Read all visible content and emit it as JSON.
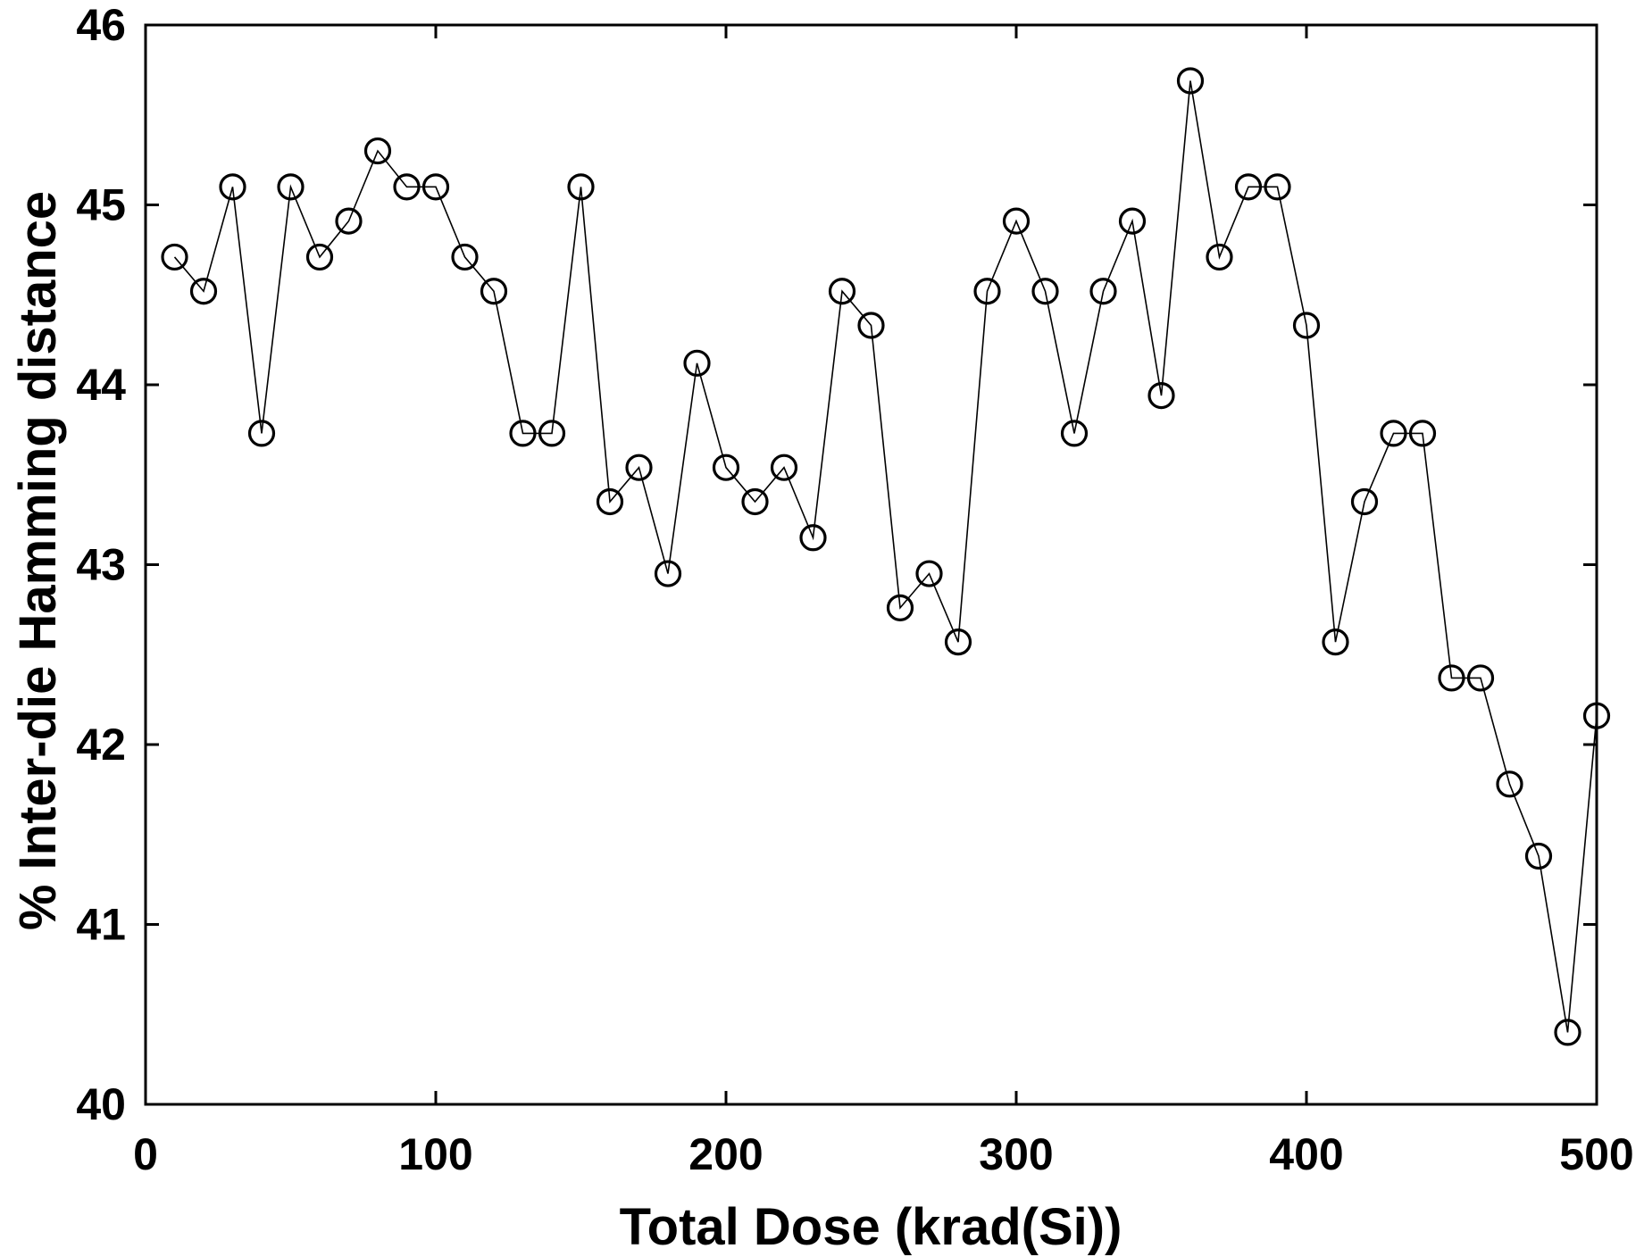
{
  "page": {
    "background": "#ffffff",
    "foreground": "#000000"
  },
  "chart_data": {
    "type": "line",
    "title": "",
    "xlabel": "Total Dose (krad(Si))",
    "ylabel": "% Inter-die Hamming distance",
    "xlim": [
      0,
      500
    ],
    "ylim": [
      40,
      46
    ],
    "xticks": [
      0,
      100,
      200,
      300,
      400,
      500
    ],
    "yticks": [
      40,
      41,
      42,
      43,
      44,
      45,
      46
    ],
    "grid": false,
    "legend": false,
    "boxed_axes": true,
    "tick_direction": "in",
    "series": [
      {
        "name": "inter-die-hamming-distance",
        "marker": "open-circle",
        "line_color": "#000000",
        "marker_color": "#000000",
        "x": [
          10,
          20,
          30,
          40,
          50,
          60,
          70,
          80,
          90,
          100,
          110,
          120,
          130,
          140,
          150,
          160,
          170,
          180,
          190,
          200,
          210,
          220,
          230,
          240,
          250,
          260,
          270,
          280,
          290,
          300,
          310,
          320,
          330,
          340,
          350,
          360,
          370,
          380,
          390,
          400,
          410,
          420,
          430,
          440,
          450,
          460,
          470,
          480,
          490,
          500
        ],
        "y": [
          44.71,
          44.52,
          45.1,
          43.73,
          45.1,
          44.71,
          44.91,
          45.3,
          45.1,
          45.1,
          44.71,
          44.52,
          43.73,
          43.73,
          45.1,
          43.35,
          43.54,
          42.95,
          44.12,
          43.54,
          43.35,
          43.54,
          43.15,
          44.52,
          44.33,
          42.76,
          42.95,
          42.57,
          44.52,
          44.91,
          44.52,
          43.73,
          44.52,
          44.91,
          43.94,
          45.69,
          44.71,
          45.1,
          45.1,
          44.33,
          42.57,
          43.35,
          43.73,
          43.73,
          42.37,
          42.37,
          41.78,
          41.38,
          40.4,
          42.16
        ]
      }
    ]
  }
}
